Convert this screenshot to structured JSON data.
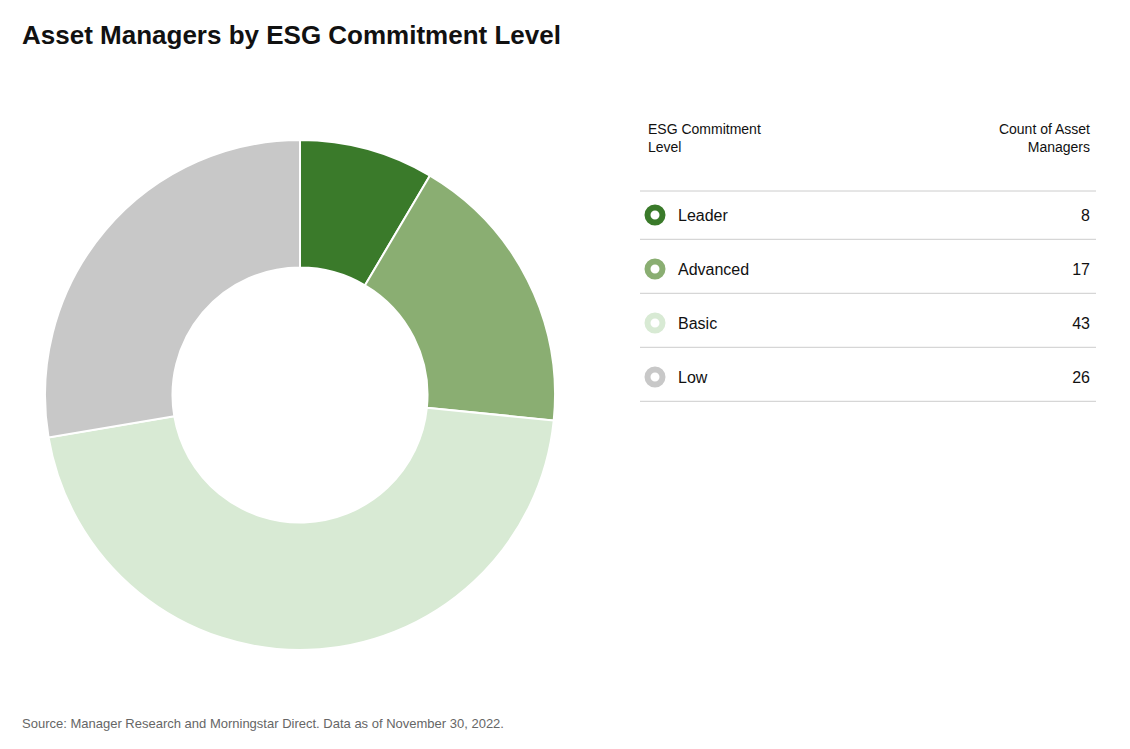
{
  "chart_data": {
    "type": "donut",
    "title": "Asset Managers by ESG Commitment Level",
    "categories": [
      "Leader",
      "Advanced",
      "Basic",
      "Low"
    ],
    "values": [
      8,
      17,
      43,
      26
    ],
    "colors": [
      "#3a7a2a",
      "#8aae72",
      "#d8ead4",
      "#c8c8c8"
    ],
    "legend": "right",
    "legend_headers": [
      "ESG Commitment\nLevel",
      "Count of Asset\nManagers"
    ],
    "source": "Source: Manager Research and Morningstar Direct. Data as of November 30, 2022."
  }
}
